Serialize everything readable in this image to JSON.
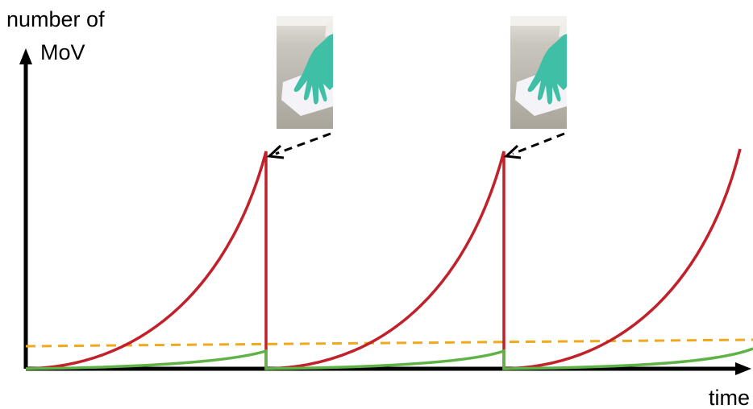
{
  "axes": {
    "y_label": [
      "number of",
      "MoV"
    ],
    "x_label": "time"
  }
}
